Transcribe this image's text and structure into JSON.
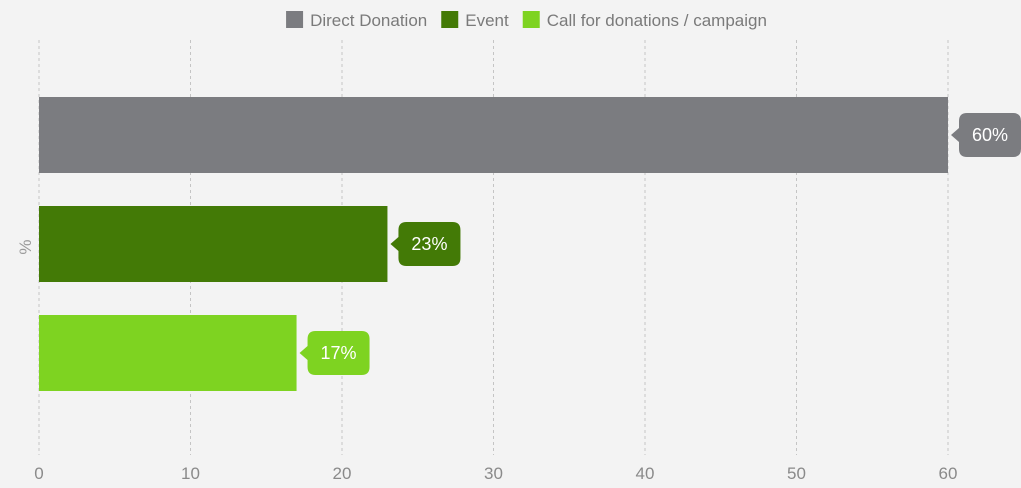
{
  "chart_data": {
    "type": "bar",
    "orientation": "horizontal",
    "category_axis_label": "%",
    "series": [
      {
        "name": "Direct Donation",
        "value": 60,
        "label": "60%",
        "color": "#7b7c80"
      },
      {
        "name": "Event",
        "value": 23,
        "label": "23%",
        "color": "#437a06"
      },
      {
        "name": "Call for donations / campaign",
        "value": 17,
        "label": "17%",
        "color": "#7ed321"
      }
    ],
    "xaxis": {
      "min": 0,
      "max": 60,
      "ticks": [
        "0",
        "10",
        "20",
        "30",
        "40",
        "50",
        "60"
      ]
    },
    "grid": true,
    "legend_position": "top-center"
  }
}
